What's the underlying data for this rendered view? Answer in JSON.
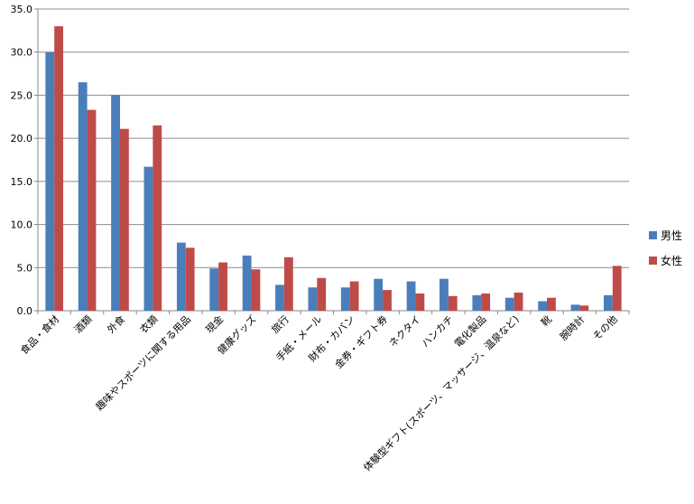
{
  "chart_data": {
    "type": "bar",
    "title": "",
    "xlabel": "",
    "ylabel": "",
    "ylim": [
      0,
      35
    ],
    "yticks": [
      "0.0",
      "5.0",
      "10.0",
      "15.0",
      "20.0",
      "25.0",
      "30.0",
      "35.0"
    ],
    "grid": true,
    "legend_position": "right",
    "categories": [
      "食品・食材",
      "酒類",
      "外食",
      "衣類",
      "趣味やスポーツに関する用品",
      "現金",
      "健康グッズ",
      "旅行",
      "手紙・メール",
      "財布・カバン",
      "金券・ギフト券",
      "ネクタイ",
      "ハンカチ",
      "電化製品",
      "体験型ギフト(スポーツ、マッサージ、温泉など)",
      "靴",
      "腕時計",
      "その他"
    ],
    "series": [
      {
        "name": "男性",
        "color": "#4a7ebb",
        "values": [
          30.0,
          26.5,
          25.0,
          16.7,
          7.9,
          4.9,
          6.4,
          3.0,
          2.7,
          2.7,
          3.7,
          3.4,
          3.7,
          1.8,
          1.5,
          1.1,
          0.7,
          1.8
        ]
      },
      {
        "name": "女性",
        "color": "#be4b48",
        "values": [
          33.0,
          23.3,
          21.1,
          21.5,
          7.3,
          5.6,
          4.8,
          6.2,
          3.8,
          3.4,
          2.4,
          2.0,
          1.7,
          2.0,
          2.1,
          1.5,
          0.6,
          5.2
        ]
      }
    ]
  }
}
